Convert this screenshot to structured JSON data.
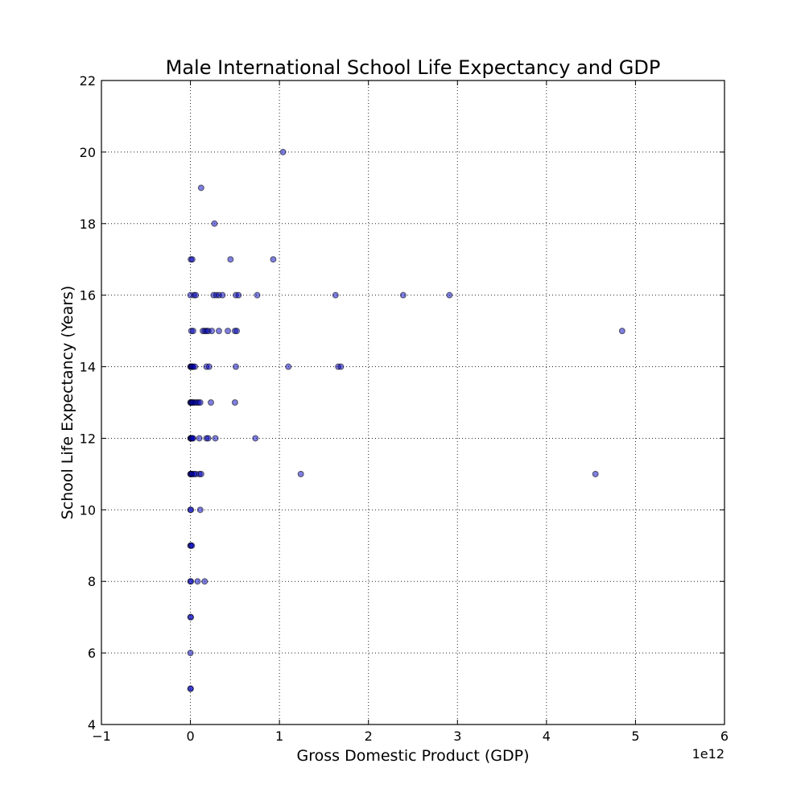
{
  "chart_data": {
    "type": "scatter",
    "title": "Male International School Life Expectancy and GDP",
    "xlabel": "Gross Domestic Product (GDP)",
    "ylabel": "School Life Expectancy (Years)",
    "x_offset_label": "1e12",
    "xlim": [
      -1000000000000.0,
      6000000000000.0
    ],
    "ylim": [
      4,
      22
    ],
    "xticks": [
      -1000000000000.0,
      0,
      1000000000000.0,
      2000000000000.0,
      3000000000000.0,
      4000000000000.0,
      5000000000000.0,
      6000000000000.0
    ],
    "xtick_labels": [
      "−1",
      "0",
      "1",
      "2",
      "3",
      "4",
      "5",
      "6"
    ],
    "yticks": [
      4,
      6,
      8,
      10,
      12,
      14,
      16,
      18,
      20,
      22
    ],
    "ytick_labels": [
      "4",
      "6",
      "8",
      "10",
      "12",
      "14",
      "16",
      "18",
      "20",
      "22"
    ],
    "grid": true,
    "marker_color": "#0000bf",
    "points": [
      {
        "x": 1040000000000.0,
        "y": 20
      },
      {
        "x": 120000000000.0,
        "y": 19
      },
      {
        "x": 270000000000.0,
        "y": 18
      },
      {
        "x": 5000000000.0,
        "y": 17
      },
      {
        "x": 20000000000.0,
        "y": 17
      },
      {
        "x": 450000000000.0,
        "y": 17
      },
      {
        "x": 930000000000.0,
        "y": 17
      },
      {
        "x": 0,
        "y": 16
      },
      {
        "x": 40000000000.0,
        "y": 16
      },
      {
        "x": 60000000000.0,
        "y": 16
      },
      {
        "x": 260000000000.0,
        "y": 16
      },
      {
        "x": 290000000000.0,
        "y": 16
      },
      {
        "x": 320000000000.0,
        "y": 16
      },
      {
        "x": 360000000000.0,
        "y": 16
      },
      {
        "x": 510000000000.0,
        "y": 16
      },
      {
        "x": 540000000000.0,
        "y": 16
      },
      {
        "x": 750000000000.0,
        "y": 16
      },
      {
        "x": 1630000000000.0,
        "y": 16
      },
      {
        "x": 2390000000000.0,
        "y": 16
      },
      {
        "x": 2910000000000.0,
        "y": 16
      },
      {
        "x": 10000000000.0,
        "y": 15
      },
      {
        "x": 30000000000.0,
        "y": 15
      },
      {
        "x": 140000000000.0,
        "y": 15
      },
      {
        "x": 160000000000.0,
        "y": 15
      },
      {
        "x": 180000000000.0,
        "y": 15
      },
      {
        "x": 200000000000.0,
        "y": 15
      },
      {
        "x": 240000000000.0,
        "y": 15
      },
      {
        "x": 320000000000.0,
        "y": 15
      },
      {
        "x": 420000000000.0,
        "y": 15
      },
      {
        "x": 500000000000.0,
        "y": 15
      },
      {
        "x": 520000000000.0,
        "y": 15
      },
      {
        "x": 4850000000000.0,
        "y": 15
      },
      {
        "x": 0,
        "y": 14
      },
      {
        "x": 5000000000.0,
        "y": 14
      },
      {
        "x": 10000000000.0,
        "y": 14
      },
      {
        "x": 20000000000.0,
        "y": 14
      },
      {
        "x": 30000000000.0,
        "y": 14
      },
      {
        "x": 50000000000.0,
        "y": 14
      },
      {
        "x": 180000000000.0,
        "y": 14
      },
      {
        "x": 210000000000.0,
        "y": 14
      },
      {
        "x": 510000000000.0,
        "y": 14
      },
      {
        "x": 1100000000000.0,
        "y": 14
      },
      {
        "x": 1660000000000.0,
        "y": 14
      },
      {
        "x": 1690000000000.0,
        "y": 14
      },
      {
        "x": 0,
        "y": 13
      },
      {
        "x": 5000000000.0,
        "y": 13
      },
      {
        "x": 10000000000.0,
        "y": 13
      },
      {
        "x": 20000000000.0,
        "y": 13
      },
      {
        "x": 30000000000.0,
        "y": 13
      },
      {
        "x": 50000000000.0,
        "y": 13
      },
      {
        "x": 70000000000.0,
        "y": 13
      },
      {
        "x": 90000000000.0,
        "y": 13
      },
      {
        "x": 110000000000.0,
        "y": 13
      },
      {
        "x": 230000000000.0,
        "y": 13
      },
      {
        "x": 500000000000.0,
        "y": 13
      },
      {
        "x": 0,
        "y": 12
      },
      {
        "x": 5000000000.0,
        "y": 12
      },
      {
        "x": 10000000000.0,
        "y": 12
      },
      {
        "x": 20000000000.0,
        "y": 12
      },
      {
        "x": 30000000000.0,
        "y": 12
      },
      {
        "x": 100000000000.0,
        "y": 12
      },
      {
        "x": 180000000000.0,
        "y": 12
      },
      {
        "x": 200000000000.0,
        "y": 12
      },
      {
        "x": 280000000000.0,
        "y": 12
      },
      {
        "x": 730000000000.0,
        "y": 12
      },
      {
        "x": 0,
        "y": 11
      },
      {
        "x": 5000000000.0,
        "y": 11
      },
      {
        "x": 10000000000.0,
        "y": 11
      },
      {
        "x": 20000000000.0,
        "y": 11
      },
      {
        "x": 40000000000.0,
        "y": 11
      },
      {
        "x": 60000000000.0,
        "y": 11
      },
      {
        "x": 100000000000.0,
        "y": 11
      },
      {
        "x": 120000000000.0,
        "y": 11
      },
      {
        "x": 1240000000000.0,
        "y": 11
      },
      {
        "x": 4550000000000.0,
        "y": 11
      },
      {
        "x": 0,
        "y": 10
      },
      {
        "x": 5000000000.0,
        "y": 10
      },
      {
        "x": 110000000000.0,
        "y": 10
      },
      {
        "x": 0,
        "y": 9
      },
      {
        "x": 5000000000.0,
        "y": 9
      },
      {
        "x": 15000000000.0,
        "y": 9
      },
      {
        "x": 0,
        "y": 8
      },
      {
        "x": 5000000000.0,
        "y": 8
      },
      {
        "x": 80000000000.0,
        "y": 8
      },
      {
        "x": 160000000000.0,
        "y": 8
      },
      {
        "x": 0,
        "y": 7
      },
      {
        "x": 5000000000.0,
        "y": 7
      },
      {
        "x": 0,
        "y": 6
      },
      {
        "x": 0,
        "y": 5
      },
      {
        "x": 3000000000.0,
        "y": 5
      }
    ]
  }
}
